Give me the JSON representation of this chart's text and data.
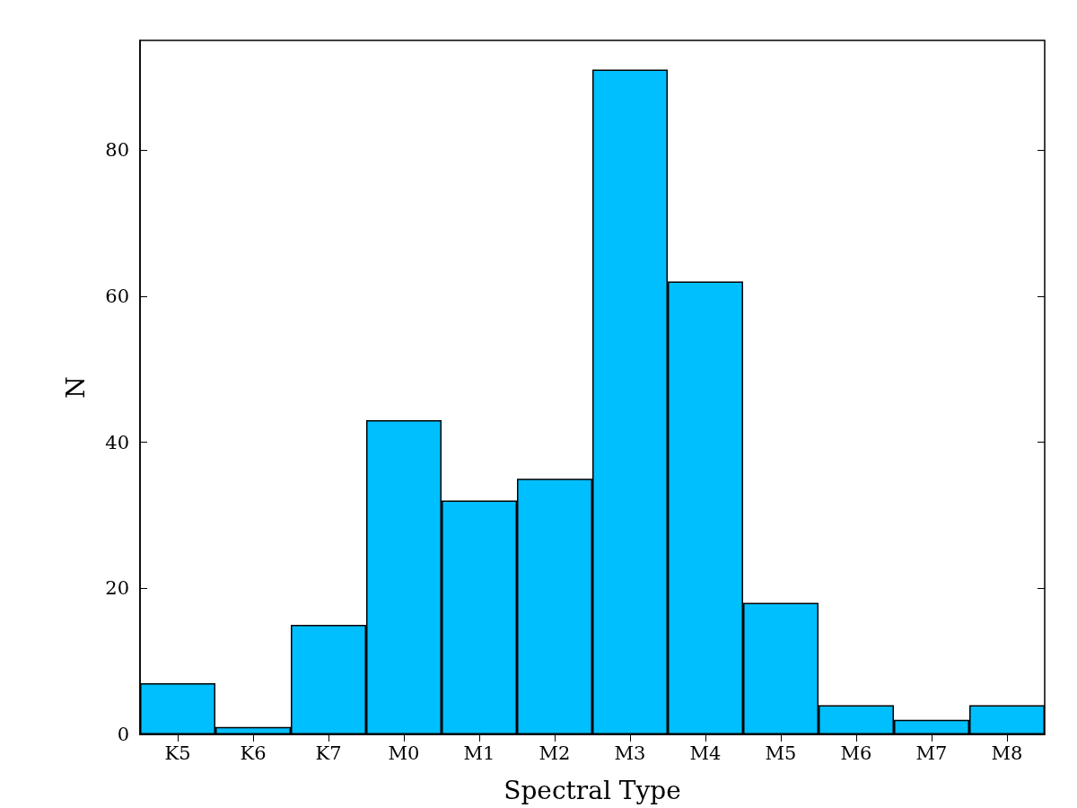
{
  "chart_data": {
    "type": "bar",
    "xlabel": "Spectral Type",
    "ylabel": "N",
    "categories": [
      "K5",
      "K6",
      "K7",
      "M0",
      "M1",
      "M2",
      "M3",
      "M4",
      "M5",
      "M6",
      "M7",
      "M8"
    ],
    "values": [
      7,
      1,
      15,
      43,
      32,
      35,
      91,
      62,
      18,
      4,
      2,
      4
    ],
    "color": "#00bfff",
    "ylim": [
      0,
      95
    ],
    "yticks": [
      0,
      20,
      40,
      60,
      80
    ],
    "grid": false
  }
}
